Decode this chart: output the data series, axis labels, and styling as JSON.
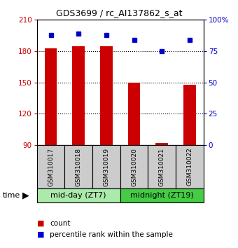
{
  "title": "GDS3699 / rc_AI137862_s_at",
  "samples": [
    "GSM310017",
    "GSM310018",
    "GSM310019",
    "GSM310020",
    "GSM310021",
    "GSM310022"
  ],
  "counts": [
    183,
    185,
    185,
    150,
    92,
    148
  ],
  "percentile_ranks": [
    88,
    89,
    88,
    84,
    75,
    84
  ],
  "groups": [
    {
      "label": "mid-day (ZT7)",
      "samples": [
        0,
        1,
        2
      ],
      "color": "#aaeaaa"
    },
    {
      "label": "midnight (ZT19)",
      "samples": [
        3,
        4,
        5
      ],
      "color": "#44cc44"
    }
  ],
  "ylim_left": [
    90,
    210
  ],
  "ylim_right": [
    0,
    100
  ],
  "yticks_left": [
    90,
    120,
    150,
    180,
    210
  ],
  "yticks_right": [
    0,
    25,
    50,
    75,
    100
  ],
  "ytick_labels_left": [
    "90",
    "120",
    "150",
    "180",
    "210"
  ],
  "ytick_labels_right": [
    "0",
    "25",
    "50",
    "75",
    "100%"
  ],
  "bar_color": "#cc0000",
  "dot_color": "#0000cc",
  "bar_width": 0.45,
  "background_color": "#ffffff",
  "plot_bg_color": "#ffffff",
  "legend_count_label": "count",
  "legend_pct_label": "percentile rank within the sample",
  "grid_lines": [
    120,
    150,
    180
  ],
  "sample_box_color": "#cccccc",
  "time_label": "time"
}
